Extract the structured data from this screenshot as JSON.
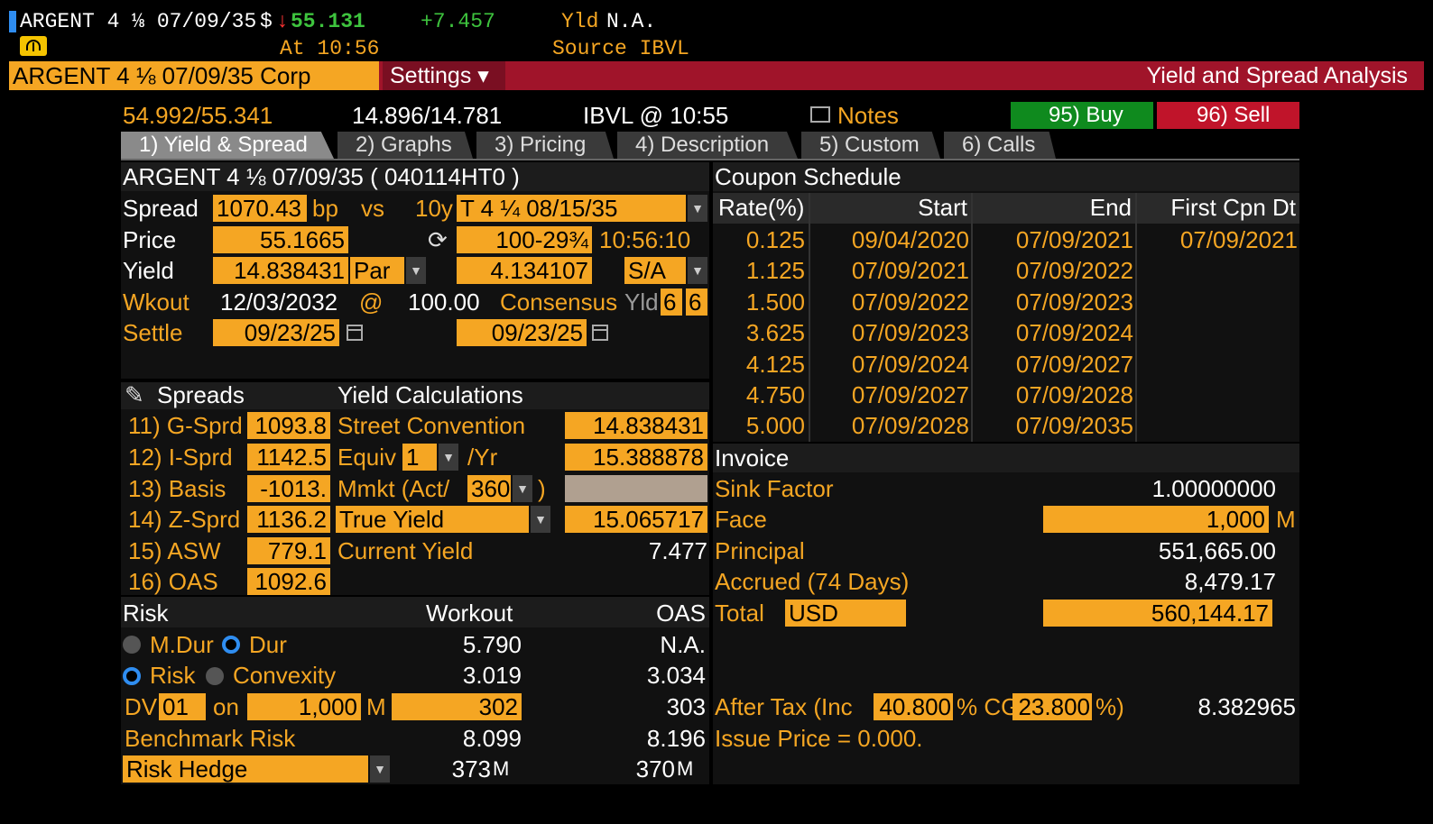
{
  "ticker_bar": {
    "security": "ARGENT 4 ⅛ 07/09/35",
    "currency_symbol": "$",
    "price": "55.131",
    "change": "+7.457",
    "yld_label": "Yld",
    "yld_value": "N.A.",
    "at_time": "At 10:56",
    "source": "Source IBVL"
  },
  "title_bar": {
    "security_field": "ARGENT 4 ⅛ 07/09/35 Corp",
    "settings_label": "Settings ▾",
    "function_title": "Yield and Spread Analysis"
  },
  "quote_row": {
    "bid_ask_price": "54.992/55.341",
    "bid_ask_yield": "14.896/14.781",
    "source_time": "IBVL @ 10:55",
    "notes_label": "Notes",
    "buy_label": "95) Buy",
    "sell_label": "96) Sell"
  },
  "tabs": [
    {
      "label": "1) Yield & Spread"
    },
    {
      "label": "2) Graphs"
    },
    {
      "label": "3) Pricing"
    },
    {
      "label": "4) Description"
    },
    {
      "label": "5) Custom"
    },
    {
      "label": "6) Calls"
    }
  ],
  "calc": {
    "header": "ARGENT 4 ⅛ 07/09/35 ( 040114HT0 )",
    "spread_label": "Spread",
    "spread_value": "1070.43",
    "spread_unit": "bp",
    "vs_label": "vs",
    "bench_tenor": "10y",
    "bench_security": "T 4 ¼ 08/15/35",
    "price_label": "Price",
    "price_value": "55.1665",
    "bench_price": "100-29¾",
    "bench_time": "10:56:10",
    "yield_label": "Yield",
    "yield_value": "14.838431",
    "yield_type": "Par",
    "bench_yield": "4.134107",
    "bench_freq": "S/A",
    "wkout_label": "Wkout",
    "wkout_date": "12/03/2032",
    "wkout_at": "@",
    "wkout_price": "100.00",
    "consensus_label": "Consensus",
    "consensus_yld": "Yld",
    "consensus_a": "6",
    "consensus_b": "6",
    "settle_label": "Settle",
    "settle_date": "09/23/25",
    "bench_settle_date": "09/23/25"
  },
  "spreads": {
    "header": "Spreads",
    "items": [
      {
        "label": "11) G-Sprd",
        "value": "1093.8"
      },
      {
        "label": "12) I-Sprd",
        "value": "1142.5"
      },
      {
        "label": "13) Basis",
        "value": "-1013."
      },
      {
        "label": "14) Z-Sprd",
        "value": "1136.2"
      },
      {
        "label": "15) ASW",
        "value": "779.1"
      },
      {
        "label": "16) OAS",
        "value": "1092.6"
      }
    ]
  },
  "yield_calc": {
    "header": "Yield Calculations",
    "street_label": "Street Convention",
    "street_value": "14.838431",
    "equiv_label": "Equiv",
    "equiv_freq": "1",
    "equiv_per": "/Yr",
    "equiv_value": "15.388878",
    "mmkt_label": "Mmkt (Act/",
    "mmkt_basis": "360",
    "mmkt_close": ")",
    "true_yield_label": "True Yield",
    "true_yield_value": "15.065717",
    "current_yield_label": "Current Yield",
    "current_yield_value": "7.477"
  },
  "risk": {
    "header": "Risk",
    "col_workout": "Workout",
    "col_oas": "OAS",
    "mdur_label": "M.Dur",
    "dur_label": "Dur",
    "dur_workout": "5.790",
    "dur_oas": "N.A.",
    "risk_label": "Risk",
    "convexity_label": "Convexity",
    "risk_workout": "3.019",
    "risk_oas": "3.034",
    "dv_label": "DV",
    "dv_value": "01",
    "on_label": "on",
    "dv_face": "1,000",
    "dv_unit": "M",
    "dv_workout": "302",
    "dv_oas": "303",
    "bench_risk_label": "Benchmark Risk",
    "bench_risk_workout": "8.099",
    "bench_risk_oas": "8.196",
    "hedge_label": "Risk Hedge",
    "hedge_workout": "373",
    "hedge_workout_unit": "M",
    "hedge_oas": "370",
    "hedge_oas_unit": "M"
  },
  "coupon_schedule": {
    "header": "Coupon Schedule",
    "columns": [
      "Rate(%)",
      "Start",
      "End",
      "First Cpn Dt"
    ],
    "rows": [
      [
        "0.125",
        "09/04/2020",
        "07/09/2021",
        "07/09/2021"
      ],
      [
        "1.125",
        "07/09/2021",
        "07/09/2022",
        ""
      ],
      [
        "1.500",
        "07/09/2022",
        "07/09/2023",
        ""
      ],
      [
        "3.625",
        "07/09/2023",
        "07/09/2024",
        ""
      ],
      [
        "4.125",
        "07/09/2024",
        "07/09/2027",
        ""
      ],
      [
        "4.750",
        "07/09/2027",
        "07/09/2028",
        ""
      ],
      [
        "5.000",
        "07/09/2028",
        "07/09/2035",
        ""
      ]
    ]
  },
  "invoice": {
    "header": "Invoice",
    "sink_label": "Sink Factor",
    "sink_value": "1.00000000",
    "face_label": "Face",
    "face_value": "1,000",
    "face_unit": "M",
    "principal_label": "Principal",
    "principal_value": "551,665.00",
    "accrued_label": "Accrued (74 Days)",
    "accrued_value": "8,479.17",
    "total_label": "Total",
    "total_ccy": "USD",
    "total_value": "560,144.17",
    "after_tax_label": "After Tax (Inc",
    "inc_rate": "40.800",
    "pct_cg": "% CG",
    "cg_rate": "23.800",
    "pct_close": "%)",
    "after_tax_value": "8.382965",
    "issue_price": "Issue Price = 0.000."
  },
  "colors": {
    "orange": "#f5a623",
    "title_red": "#a0142a",
    "buy_green": "#0f8a1e",
    "sell_red": "#c0142a",
    "tab_active": "#8a8a8a",
    "tab": "#3a3a3a"
  }
}
